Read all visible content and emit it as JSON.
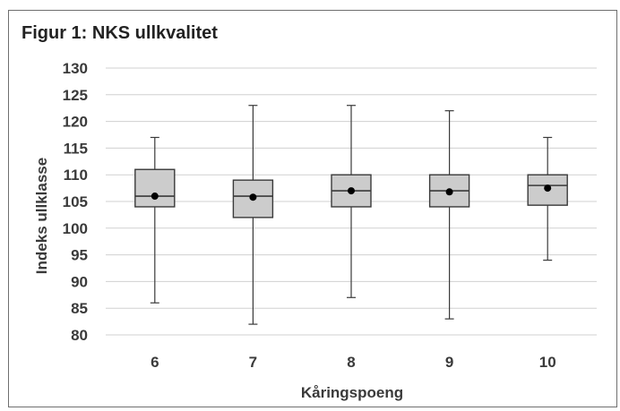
{
  "figure": {
    "title": "Figur 1: NKS ullkvalitet"
  },
  "chart_data": {
    "type": "boxplot",
    "xlabel": "Kåringspoeng",
    "ylabel": "Indeks ullklasse",
    "ylim": [
      80,
      130
    ],
    "yticks": [
      130,
      125,
      120,
      115,
      110,
      105,
      100,
      95,
      90,
      85,
      80
    ],
    "grid": true,
    "categories": [
      "6",
      "7",
      "8",
      "9",
      "10"
    ],
    "boxes": [
      {
        "category": "6",
        "min": 86,
        "q1": 104,
        "median": 106,
        "q3": 111,
        "max": 117,
        "mean": 106
      },
      {
        "category": "7",
        "min": 82,
        "q1": 102,
        "median": 106,
        "q3": 109,
        "max": 123,
        "mean": 105.8
      },
      {
        "category": "8",
        "min": 87,
        "q1": 104,
        "median": 107,
        "q3": 110,
        "max": 123,
        "mean": 107
      },
      {
        "category": "9",
        "min": 83,
        "q1": 104,
        "median": 107,
        "q3": 110,
        "max": 122,
        "mean": 106.8
      },
      {
        "category": "10",
        "min": 94,
        "q1": 104.3,
        "median": 108,
        "q3": 110,
        "max": 117,
        "mean": 107.5
      }
    ],
    "colors": {
      "box_fill": "#cccccc",
      "stroke": "#3a3a3a",
      "grid": "#d0d0d0",
      "mean_marker": "#000000"
    }
  }
}
